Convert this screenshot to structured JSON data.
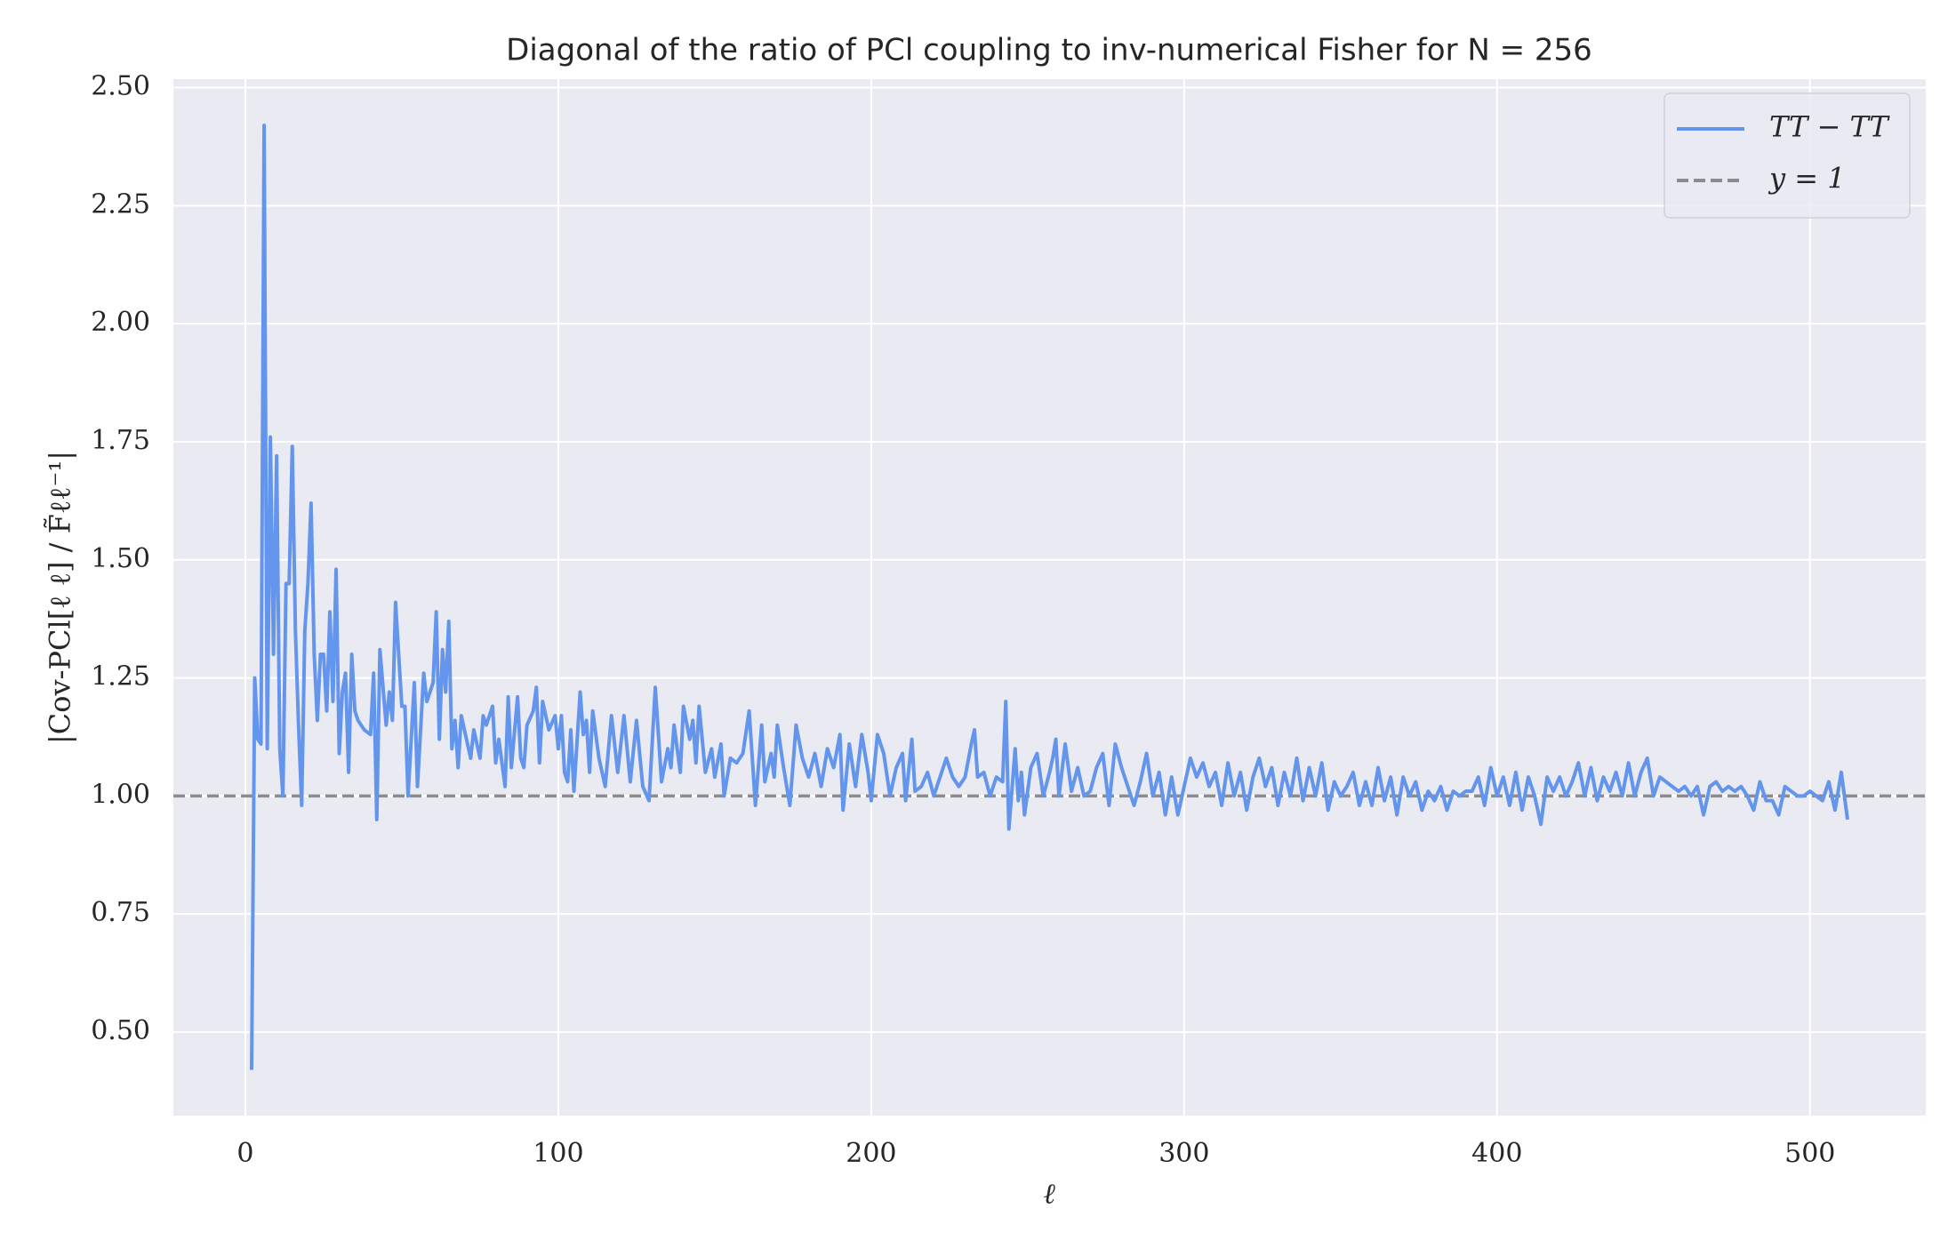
{
  "chart_data": {
    "type": "line",
    "title": "Diagonal of the ratio of PCl coupling to inv-numerical Fisher for N = 256",
    "xlabel": "ℓ",
    "ylabel": "|Cov-PCl[ℓ ℓ] / F̃ℓℓ⁻¹|",
    "x": [
      2,
      3,
      4,
      5,
      6,
      7,
      8,
      9,
      10,
      11,
      12,
      13,
      14,
      15,
      16,
      17,
      18,
      19,
      20,
      21,
      22,
      23,
      24,
      25,
      26,
      27,
      28,
      29,
      30,
      31,
      32,
      33,
      34,
      35,
      36,
      38,
      40,
      41,
      42,
      43,
      45,
      46,
      47,
      48,
      50,
      51,
      52,
      54,
      55,
      57,
      58,
      60,
      61,
      62,
      63,
      64,
      65,
      66,
      67,
      68,
      69,
      71,
      72,
      73,
      75,
      76,
      77,
      79,
      80,
      81,
      83,
      84,
      85,
      87,
      88,
      89,
      90,
      92,
      93,
      94,
      95,
      97,
      99,
      100,
      101,
      102,
      103,
      104,
      105,
      107,
      108,
      109,
      110,
      111,
      113,
      115,
      117,
      119,
      121,
      123,
      125,
      127,
      129,
      131,
      133,
      135,
      136,
      137,
      139,
      140,
      142,
      143,
      144,
      145,
      147,
      149,
      150,
      152,
      153,
      155,
      157,
      159,
      161,
      163,
      165,
      166,
      168,
      169,
      170,
      172,
      174,
      176,
      178,
      180,
      182,
      184,
      186,
      188,
      190,
      191,
      193,
      195,
      197,
      199,
      200,
      202,
      204,
      206,
      208,
      210,
      211,
      213,
      214,
      216,
      218,
      220,
      222,
      224,
      226,
      228,
      230,
      232,
      233,
      234,
      236,
      238,
      240,
      242,
      243,
      244,
      246,
      247,
      248,
      249,
      251,
      253,
      255,
      257,
      258,
      259,
      260,
      262,
      264,
      266,
      268,
      270,
      272,
      274,
      276,
      278,
      280,
      282,
      284,
      286,
      288,
      290,
      292,
      294,
      296,
      298,
      300,
      302,
      304,
      306,
      308,
      310,
      312,
      314,
      316,
      318,
      320,
      322,
      324,
      326,
      328,
      330,
      332,
      334,
      336,
      338,
      340,
      342,
      344,
      346,
      348,
      350,
      352,
      354,
      356,
      358,
      360,
      362,
      364,
      366,
      368,
      370,
      372,
      374,
      376,
      378,
      380,
      382,
      384,
      386,
      388,
      390,
      392,
      394,
      396,
      398,
      400,
      402,
      404,
      406,
      408,
      410,
      412,
      414,
      416,
      418,
      420,
      422,
      424,
      426,
      428,
      430,
      432,
      434,
      436,
      438,
      440,
      442,
      444,
      446,
      448,
      450,
      452,
      454,
      456,
      458,
      460,
      462,
      464,
      466,
      468,
      470,
      472,
      474,
      476,
      478,
      480,
      482,
      484,
      486,
      488,
      490,
      492,
      494,
      496,
      498,
      500,
      502,
      504,
      506,
      508,
      510,
      512
    ],
    "series": [
      {
        "name": "TT − TT",
        "color": "#6495ed",
        "values": [
          0.42,
          1.25,
          1.12,
          1.11,
          2.42,
          1.1,
          1.76,
          1.3,
          1.72,
          1.1,
          1.0,
          1.45,
          1.45,
          1.74,
          1.35,
          1.15,
          0.98,
          1.35,
          1.45,
          1.62,
          1.3,
          1.16,
          1.3,
          1.3,
          1.18,
          1.39,
          1.2,
          1.48,
          1.09,
          1.22,
          1.26,
          1.05,
          1.3,
          1.18,
          1.16,
          1.14,
          1.13,
          1.26,
          0.95,
          1.31,
          1.15,
          1.22,
          1.16,
          1.41,
          1.19,
          1.19,
          1.0,
          1.24,
          1.02,
          1.26,
          1.2,
          1.24,
          1.39,
          1.12,
          1.31,
          1.22,
          1.37,
          1.1,
          1.16,
          1.06,
          1.17,
          1.11,
          1.08,
          1.14,
          1.08,
          1.17,
          1.15,
          1.19,
          1.07,
          1.12,
          1.02,
          1.21,
          1.06,
          1.21,
          1.08,
          1.06,
          1.15,
          1.18,
          1.23,
          1.07,
          1.2,
          1.14,
          1.17,
          1.1,
          1.17,
          1.05,
          1.03,
          1.14,
          1.01,
          1.22,
          1.13,
          1.16,
          1.05,
          1.18,
          1.08,
          1.02,
          1.17,
          1.05,
          1.17,
          1.03,
          1.16,
          1.02,
          0.99,
          1.23,
          1.03,
          1.1,
          1.06,
          1.15,
          1.05,
          1.19,
          1.12,
          1.16,
          1.07,
          1.19,
          1.05,
          1.1,
          1.04,
          1.11,
          1.0,
          1.08,
          1.07,
          1.09,
          1.18,
          0.98,
          1.15,
          1.03,
          1.09,
          1.04,
          1.15,
          1.06,
          0.98,
          1.15,
          1.08,
          1.04,
          1.09,
          1.02,
          1.1,
          1.06,
          1.13,
          0.97,
          1.11,
          1.02,
          1.13,
          1.05,
          0.99,
          1.13,
          1.09,
          1.0,
          1.06,
          1.09,
          0.99,
          1.12,
          1.01,
          1.02,
          1.05,
          1.0,
          1.04,
          1.08,
          1.04,
          1.02,
          1.04,
          1.11,
          1.14,
          1.04,
          1.05,
          1.0,
          1.04,
          1.03,
          1.2,
          0.93,
          1.1,
          0.99,
          1.05,
          0.96,
          1.06,
          1.09,
          1.0,
          1.05,
          1.08,
          1.12,
          1.0,
          1.11,
          1.01,
          1.06,
          1.0,
          1.01,
          1.06,
          1.09,
          0.98,
          1.11,
          1.06,
          1.02,
          0.98,
          1.03,
          1.09,
          1.0,
          1.05,
          0.96,
          1.04,
          0.96,
          1.02,
          1.08,
          1.04,
          1.07,
          1.02,
          1.05,
          0.98,
          1.07,
          1.0,
          1.05,
          0.97,
          1.04,
          1.08,
          1.02,
          1.06,
          0.98,
          1.05,
          1.0,
          1.08,
          0.99,
          1.06,
          1.0,
          1.07,
          0.97,
          1.03,
          1.0,
          1.02,
          1.05,
          0.98,
          1.03,
          0.98,
          1.06,
          0.99,
          1.04,
          0.96,
          1.04,
          1.0,
          1.03,
          0.97,
          1.01,
          0.99,
          1.02,
          0.97,
          1.01,
          1.0,
          1.01,
          1.01,
          1.04,
          0.98,
          1.06,
          1.0,
          1.04,
          0.98,
          1.05,
          0.97,
          1.04,
          1.0,
          0.94,
          1.04,
          1.01,
          1.04,
          1.0,
          1.03,
          1.07,
          1.0,
          1.06,
          0.99,
          1.04,
          1.01,
          1.05,
          1.0,
          1.07,
          1.0,
          1.05,
          1.08,
          1.0,
          1.04,
          1.03,
          1.02,
          1.01,
          1.02,
          1.0,
          1.02,
          0.96,
          1.02,
          1.03,
          1.01,
          1.02,
          1.01,
          1.02,
          1.0,
          0.97,
          1.03,
          0.99,
          0.99,
          0.96,
          1.02,
          1.01,
          1.0,
          1.0,
          1.01,
          1.0,
          0.99,
          1.03,
          0.97,
          1.05,
          0.95
        ]
      }
    ],
    "hlines": [
      {
        "name": "y = 1",
        "value": 1,
        "color": "#8c8c8c",
        "style": "dashed"
      }
    ],
    "xlim": [
      -23,
      537
    ],
    "ylim": [
      0.323,
      2.518
    ],
    "xticks": [
      0,
      100,
      200,
      300,
      400,
      500
    ],
    "yticks": [
      {
        "value": 0.5,
        "label": "0.50"
      },
      0.75,
      {
        "value": 1,
        "label": "1.00"
      },
      1.25,
      {
        "value": 1.5,
        "label": "1.50"
      },
      1.75,
      {
        "value": 2,
        "label": "2.00"
      },
      2.25,
      {
        "value": 2.5,
        "label": "2.50"
      }
    ],
    "grid": true,
    "legend": "upper right"
  }
}
